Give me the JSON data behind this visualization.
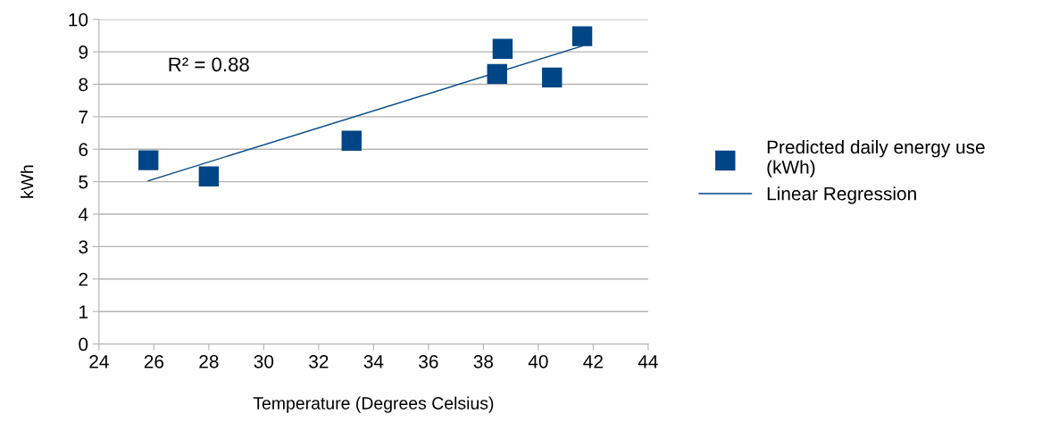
{
  "chart_data": {
    "type": "scatter",
    "xlabel": "Temperature (Degrees Celsius)",
    "ylabel": "kWh",
    "xlim": [
      24,
      44
    ],
    "xticks": [
      24,
      26,
      28,
      30,
      32,
      34,
      36,
      38,
      40,
      42,
      44
    ],
    "ylim": [
      0,
      10
    ],
    "yticks": [
      0,
      1,
      2,
      3,
      4,
      5,
      6,
      7,
      8,
      9,
      10
    ],
    "grid": "y",
    "legend": "right",
    "annotations": [
      "R² = 0.88"
    ],
    "series": [
      {
        "name": "Predicted daily energy use (kWh)",
        "marker": "square",
        "color": "#004586",
        "x": [
          25.8,
          28.0,
          33.2,
          38.5,
          38.7,
          40.5,
          41.6
        ],
        "values": [
          5.66,
          5.16,
          6.26,
          8.32,
          9.09,
          8.21,
          9.48
        ]
      },
      {
        "name": "Linear Regression",
        "type": "line",
        "marker": "none",
        "line_style": "solid",
        "color": "#004586",
        "x": [
          25.8,
          41.6
        ],
        "values": [
          5.03,
          9.18
        ]
      }
    ]
  }
}
